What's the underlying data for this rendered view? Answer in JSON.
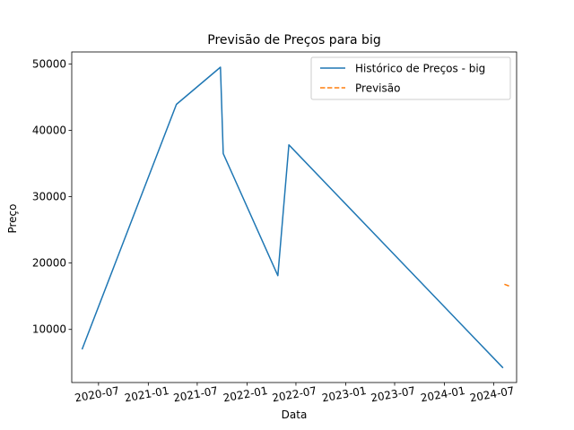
{
  "chart_data": {
    "type": "line",
    "title": "Previsão de Preços para big",
    "xlabel": "Data",
    "ylabel": "Preço",
    "x_ticks": [
      "2020-07",
      "2021-01",
      "2021-07",
      "2022-01",
      "2022-07",
      "2023-01",
      "2023-07",
      "2024-01",
      "2024-07"
    ],
    "y_ticks": [
      10000,
      20000,
      30000,
      40000,
      50000
    ],
    "xlim": [
      "2020-03-24",
      "2024-09-24"
    ],
    "ylim": [
      2000,
      51800
    ],
    "grid": false,
    "legend_position": "top-right",
    "series": [
      {
        "name": "Histórico de Preços - big",
        "color": "#1f77b4",
        "style": "solid",
        "points": [
          {
            "x": "2020-05-01",
            "y": 7000
          },
          {
            "x": "2021-04-15",
            "y": 43900
          },
          {
            "x": "2021-09-25",
            "y": 49500
          },
          {
            "x": "2021-10-05",
            "y": 36500
          },
          {
            "x": "2022-04-25",
            "y": 18100
          },
          {
            "x": "2022-06-05",
            "y": 37800
          },
          {
            "x": "2024-08-05",
            "y": 4200
          }
        ]
      },
      {
        "name": "Previsão",
        "color": "#ff7f0e",
        "style": "dashed",
        "points": [
          {
            "x": "2024-08-10",
            "y": 16800
          },
          {
            "x": "2024-08-30",
            "y": 16500
          }
        ]
      }
    ]
  }
}
